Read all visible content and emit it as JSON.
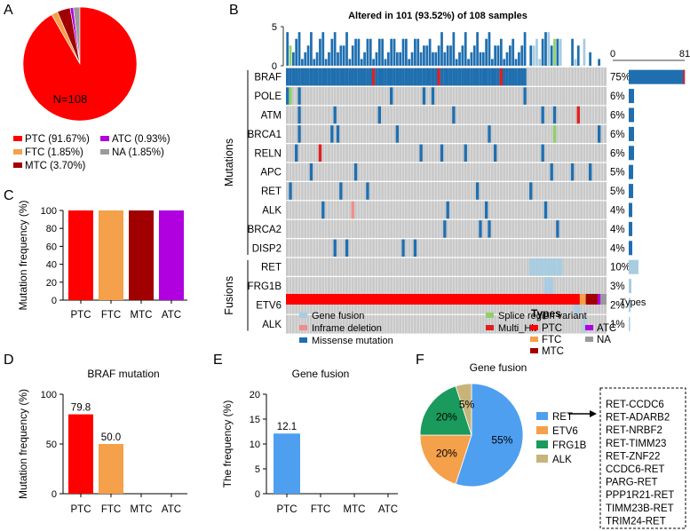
{
  "panels": {
    "a": "A",
    "b": "B",
    "c": "C",
    "d": "D",
    "e": "E",
    "f": "F"
  },
  "colors": {
    "ptc": "#ff0000",
    "ftc": "#f5a04a",
    "mtc": "#a00000",
    "atc": "#b000e0",
    "na": "#9a9a9a",
    "gene_fusion": "#a8cce0",
    "inframe_deletion": "#f08c8c",
    "missense": "#1f6fb0",
    "splice": "#8fd06a",
    "multi_hit": "#e02020",
    "grid_bg": "#c9c9c9",
    "pie_ret": "#4f9ff0",
    "pie_etv6": "#f5a04a",
    "pie_frg1b": "#1a9a5c",
    "pie_alk": "#c8b47a"
  },
  "chart_data": [
    {
      "id": "A",
      "type": "pie",
      "center_label": "N=108",
      "slices": [
        {
          "name": "PTC",
          "value": 91.67,
          "color_key": "ptc"
        },
        {
          "name": "FTC",
          "value": 1.85,
          "color_key": "ftc"
        },
        {
          "name": "MTC",
          "value": 3.7,
          "color_key": "mtc"
        },
        {
          "name": "ATC",
          "value": 0.93,
          "color_key": "atc"
        },
        {
          "name": "NA",
          "value": 1.85,
          "color_key": "na"
        }
      ],
      "legend": [
        {
          "label": "PTC (91.67%)",
          "color_key": "ptc"
        },
        {
          "label": "ATC (0.93%)",
          "color_key": "atc"
        },
        {
          "label": "FTC (1.85%)",
          "color_key": "ftc"
        },
        {
          "label": "NA (1.85%)",
          "color_key": "na"
        },
        {
          "label": "MTC (3.70%)",
          "color_key": "mtc"
        }
      ]
    },
    {
      "id": "B",
      "type": "heatmap",
      "title": "Altered in 101 (93.52%) of 108 samples",
      "top_axis_ticks": [
        "5",
        "0"
      ],
      "right_axis_ticks": [
        "0",
        "81"
      ],
      "groups": [
        {
          "label": "Mutations",
          "rows": [
            "BRAF",
            "POLE",
            "ATM",
            "BRCA1",
            "RELN",
            "APC",
            "RET",
            "ALK",
            "BRCA2",
            "DISP2"
          ]
        },
        {
          "label": "Fusions",
          "rows": [
            "RET",
            "FRG1B",
            "ETV6",
            "ALK"
          ]
        }
      ],
      "rows": [
        {
          "gene": "BRAF",
          "pct": "75%",
          "count": 81
        },
        {
          "gene": "POLE",
          "pct": "6%",
          "count": 6
        },
        {
          "gene": "ATM",
          "pct": "6%",
          "count": 6
        },
        {
          "gene": "BRCA1",
          "pct": "6%",
          "count": 6
        },
        {
          "gene": "RELN",
          "pct": "6%",
          "count": 6
        },
        {
          "gene": "APC",
          "pct": "5%",
          "count": 5
        },
        {
          "gene": "RET",
          "pct": "5%",
          "count": 5
        },
        {
          "gene": "ALK",
          "pct": "4%",
          "count": 4
        },
        {
          "gene": "BRCA2",
          "pct": "4%",
          "count": 4
        },
        {
          "gene": "DISP2",
          "pct": "4%",
          "count": 4
        },
        {
          "gene": "RET",
          "pct": "10%",
          "count": 11
        },
        {
          "gene": "FRG1B",
          "pct": "3%",
          "count": 3
        },
        {
          "gene": "ETV6",
          "pct": "2%",
          "count": 2
        },
        {
          "gene": "ALK",
          "pct": "1%",
          "count": 1
        }
      ],
      "types_label": "Types",
      "types_track": [
        {
          "type": "PTC",
          "count": 99,
          "color_key": "ptc"
        },
        {
          "type": "FTC",
          "count": 2,
          "color_key": "ftc"
        },
        {
          "type": "MTC",
          "count": 4,
          "color_key": "mtc"
        },
        {
          "type": "ATC",
          "count": 1,
          "color_key": "atc"
        },
        {
          "type": "NA",
          "count": 2,
          "color_key": "na"
        }
      ],
      "alteration_legend": [
        {
          "label": "Gene fusion",
          "color_key": "gene_fusion"
        },
        {
          "label": "Splice region variant",
          "color_key": "splice"
        },
        {
          "label": "Inframe deletion",
          "color_key": "inframe_deletion"
        },
        {
          "label": "Multi_Hit",
          "color_key": "multi_hit"
        },
        {
          "label": "Missense mutation",
          "color_key": "missense"
        }
      ],
      "types_legend_title": "Types",
      "types_legend": [
        {
          "label": "PTC",
          "color_key": "ptc"
        },
        {
          "label": "ATC",
          "color_key": "atc"
        },
        {
          "label": "FTC",
          "color_key": "ftc"
        },
        {
          "label": "NA",
          "color_key": "na"
        },
        {
          "label": "MTC",
          "color_key": "mtc"
        }
      ]
    },
    {
      "id": "C",
      "type": "bar",
      "title": "",
      "ylabel": "Mutation frequency  (%)",
      "categories": [
        "PTC",
        "FTC",
        "MTC",
        "ATC"
      ],
      "values": [
        100,
        100,
        100,
        100
      ],
      "color_keys": [
        "ptc",
        "ftc",
        "mtc",
        "atc"
      ],
      "ylim": [
        0,
        100
      ],
      "yticks": [
        0,
        20,
        40,
        60,
        80,
        100
      ]
    },
    {
      "id": "D",
      "type": "bar",
      "title": "BRAF mutation",
      "ylabel": "Mutation frequency  (%)",
      "categories": [
        "PTC",
        "FTC",
        "MTC",
        "ATC"
      ],
      "values": [
        79.8,
        50.0,
        0,
        0
      ],
      "value_labels": [
        "79.8",
        "50.0",
        "",
        ""
      ],
      "color_keys": [
        "ptc",
        "ftc",
        "mtc",
        "atc"
      ],
      "ylim": [
        0,
        100
      ],
      "yticks": [
        0,
        50,
        100
      ]
    },
    {
      "id": "E",
      "type": "bar",
      "title": "Gene fusion",
      "ylabel": "The frequency  (%)",
      "categories": [
        "PTC",
        "FTC",
        "MTC",
        "ATC"
      ],
      "values": [
        12.1,
        0,
        0,
        0
      ],
      "value_labels": [
        "12.1",
        "",
        "",
        ""
      ],
      "color_keys": [
        "pie_ret",
        "pie_ret",
        "pie_ret",
        "pie_ret"
      ],
      "ylim": [
        0,
        20
      ],
      "yticks": [
        0,
        5,
        10,
        15,
        20
      ]
    },
    {
      "id": "F",
      "type": "pie",
      "title": "Gene fusion",
      "slices": [
        {
          "name": "RET",
          "value": 55,
          "label": "55%",
          "color_key": "pie_ret"
        },
        {
          "name": "ETV6",
          "value": 20,
          "label": "20%",
          "color_key": "pie_etv6"
        },
        {
          "name": "FRG1B",
          "value": 20,
          "label": "20%",
          "color_key": "pie_frg1b"
        },
        {
          "name": "ALK",
          "value": 5,
          "label": "5%",
          "color_key": "pie_alk"
        }
      ],
      "legend": [
        {
          "label": "RET",
          "color_key": "pie_ret"
        },
        {
          "label": "ETV6",
          "color_key": "pie_etv6"
        },
        {
          "label": "FRG1B",
          "color_key": "pie_frg1b"
        },
        {
          "label": "ALK",
          "color_key": "pie_alk"
        }
      ],
      "ret_partners": [
        "RET-CCDC6",
        "RET-ADARB2",
        "RET-NRBF2",
        "RET-TIMM23",
        "RET-ZNF22",
        "CCDC6-RET",
        "PARG-RET",
        "PPP1R21-RET",
        "TIMM23B-RET",
        "TRIM24-RET"
      ]
    }
  ]
}
